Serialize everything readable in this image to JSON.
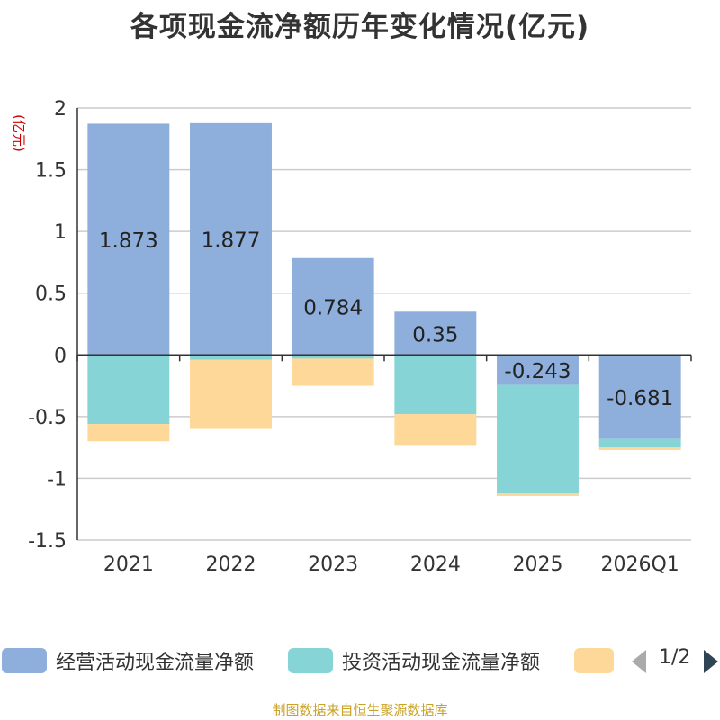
{
  "title": "各项现金流净额历年变化情况(亿元)",
  "source_note": "制图数据来自恒生聚源数据库",
  "pager": {
    "text": "1/2"
  },
  "colors": {
    "operating": "#8eaedb",
    "investing": "#86d4d6",
    "financing": "#fdd898",
    "label_unit": "#cc0000",
    "grid": "#cccccc",
    "axis": "#333333",
    "pager_prev": "#aaaaaa",
    "pager_next": "#2f4554"
  },
  "chart_data": {
    "type": "bar",
    "stacked": true,
    "categories": [
      "2021",
      "2022",
      "2023",
      "2024",
      "2025",
      "2026Q1"
    ],
    "ylabel": "(亿元)",
    "ylim": [
      -1.5,
      2
    ],
    "yticks": [
      2,
      1.5,
      1,
      0.5,
      0,
      -0.5,
      -1,
      -1.5
    ],
    "ytick_labels": [
      "2",
      "1.5",
      "1",
      "0.5",
      "0",
      "-0.5",
      "-1",
      "-1.5"
    ],
    "grid": true,
    "legend_position": "bottom",
    "series": [
      {
        "name": "经营活动现金流量净额",
        "color_key": "operating",
        "values": [
          1.873,
          1.877,
          0.784,
          0.35,
          -0.243,
          -0.681
        ],
        "show_labels": true
      },
      {
        "name": "投资活动现金流量净额",
        "color_key": "investing",
        "values": [
          -0.56,
          -0.04,
          -0.03,
          -0.48,
          -0.88,
          -0.07
        ],
        "show_labels": false
      },
      {
        "name": "",
        "color_key": "financing",
        "values": [
          -0.14,
          -0.56,
          -0.22,
          -0.25,
          -0.02,
          -0.02
        ],
        "show_labels": false
      }
    ],
    "data_labels": [
      "1.873",
      "1.877",
      "0.784",
      "0.35",
      "-0.243",
      "-0.681"
    ]
  },
  "legend": [
    {
      "label": "经营活动现金流量净额",
      "color_key": "operating"
    },
    {
      "label": "投资活动现金流量净额",
      "color_key": "investing"
    },
    {
      "label": "",
      "color_key": "financing"
    }
  ]
}
